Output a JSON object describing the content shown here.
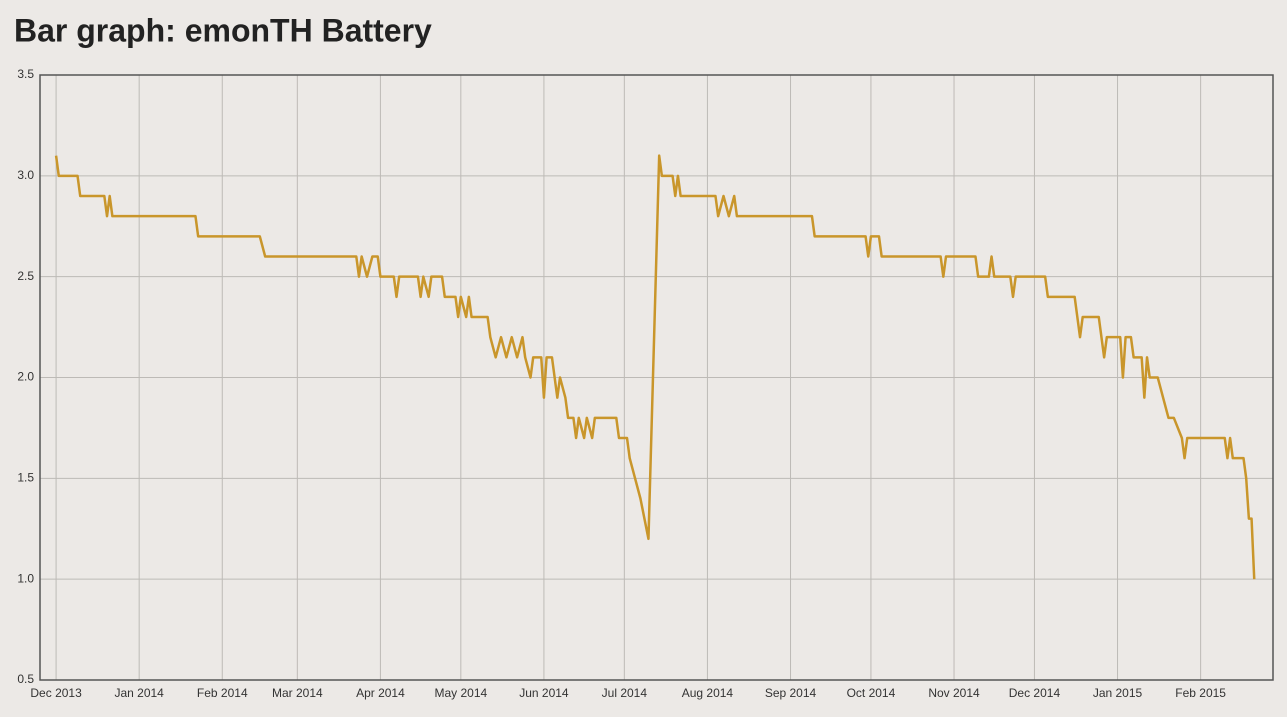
{
  "chart_data": {
    "type": "line",
    "title": "Bar graph: emonTH Battery",
    "color": "#c9962b",
    "grid": true,
    "ylim": [
      0.5,
      3.5
    ],
    "yticks": [
      0.5,
      {
        "value": 1,
        "label": "1.0"
      },
      1.5,
      {
        "value": 2,
        "label": "2.0"
      },
      2.5,
      {
        "value": 3,
        "label": "3.0"
      },
      3.5
    ],
    "xlim": [
      1385337600000,
      1425081600000
    ],
    "xticks": [
      {
        "value": 1385856000000,
        "label": "Dec 2013"
      },
      {
        "value": 1388534400000,
        "label": "Jan 2014"
      },
      {
        "value": 1391212800000,
        "label": "Feb 2014"
      },
      {
        "value": 1393632000000,
        "label": "Mar 2014"
      },
      {
        "value": 1396310400000,
        "label": "Apr 2014"
      },
      {
        "value": 1398902400000,
        "label": "May 2014"
      },
      {
        "value": 1401580800000,
        "label": "Jun 2014"
      },
      {
        "value": 1404172800000,
        "label": "Jul 2014"
      },
      {
        "value": 1406851200000,
        "label": "Aug 2014"
      },
      {
        "value": 1409529600000,
        "label": "Sep 2014"
      },
      {
        "value": 1412121600000,
        "label": "Oct 2014"
      },
      {
        "value": 1414800000000,
        "label": "Nov 2014"
      },
      {
        "value": 1417392000000,
        "label": "Dec 2014"
      },
      {
        "value": 1420070400000,
        "label": "Jan 2015"
      },
      {
        "value": 1422748800000,
        "label": "Feb 2015"
      }
    ],
    "x": [
      1385856000000,
      1385942400000,
      1386547200000,
      1386633600000,
      1387411200000,
      1387497600000,
      1387584000000,
      1387670400000,
      1390348800000,
      1390435200000,
      1392422400000,
      1392595200000,
      1395532800000,
      1395619200000,
      1395705600000,
      1395878400000,
      1396051200000,
      1396224000000,
      1396310400000,
      1396742400000,
      1396828800000,
      1396915200000,
      1397520000000,
      1397606400000,
      1397692800000,
      1397865600000,
      1397952000000,
      1398297600000,
      1398384000000,
      1398729600000,
      1398816000000,
      1398902400000,
      1399075200000,
      1399161600000,
      1399248000000,
      1399766400000,
      1399852800000,
      1400025600000,
      1400198400000,
      1400371200000,
      1400544000000,
      1400716800000,
      1400889600000,
      1400976000000,
      1401148800000,
      1401235200000,
      1401494400000,
      1401580800000,
      1401667200000,
      1401840000000,
      1401926400000,
      1402012800000,
      1402099200000,
      1402272000000,
      1402358400000,
      1402531200000,
      1402617600000,
      1402704000000,
      1402876800000,
      1402963200000,
      1403136000000,
      1403222400000,
      1403913600000,
      1404000000000,
      1404259200000,
      1404345600000,
      1404518400000,
      1404691200000,
      1404950400000,
      1405296000000,
      1405382400000,
      1405728000000,
      1405814400000,
      1405900800000,
      1405987200000,
      1407110400000,
      1407196800000,
      1407369600000,
      1407542400000,
      1407715200000,
      1407801600000,
      1410220800000,
      1410307200000,
      1411948800000,
      1412035200000,
      1412121600000,
      1412380800000,
      1412467200000,
      1414368000000,
      1414454400000,
      1414540800000,
      1415491200000,
      1415577600000,
      1415923200000,
      1416009600000,
      1416096000000,
      1416614400000,
      1416700800000,
      1416787200000,
      1417737600000,
      1417824000000,
      1418688000000,
      1418774400000,
      1418860800000,
      1418947200000,
      1419465600000,
      1419552000000,
      1419638400000,
      1419724800000,
      1420156800000,
      1420243200000,
      1420329600000,
      1420502400000,
      1420588800000,
      1420848000000,
      1420934400000,
      1421020800000,
      1421107200000,
      1421366400000,
      1421539200000,
      1421712000000,
      1421884800000,
      1422144000000,
      1422230400000,
      1422316800000,
      1423526400000,
      1423612800000,
      1423699200000,
      1423785600000,
      1424131200000,
      1424217600000,
      1424304000000,
      1424390400000,
      1424476800000
    ],
    "values": [
      3.1,
      3.0,
      3.0,
      2.9,
      2.9,
      2.8,
      2.9,
      2.8,
      2.8,
      2.7,
      2.7,
      2.6,
      2.6,
      2.5,
      2.6,
      2.5,
      2.6,
      2.6,
      2.5,
      2.5,
      2.4,
      2.5,
      2.5,
      2.4,
      2.5,
      2.4,
      2.5,
      2.5,
      2.4,
      2.4,
      2.3,
      2.4,
      2.3,
      2.4,
      2.3,
      2.3,
      2.2,
      2.1,
      2.2,
      2.1,
      2.2,
      2.1,
      2.2,
      2.1,
      2.0,
      2.1,
      2.1,
      1.9,
      2.1,
      2.1,
      2.0,
      1.9,
      2.0,
      1.9,
      1.8,
      1.8,
      1.7,
      1.8,
      1.7,
      1.8,
      1.7,
      1.8,
      1.8,
      1.7,
      1.7,
      1.6,
      1.5,
      1.4,
      1.2,
      3.1,
      3.0,
      3.0,
      2.9,
      3.0,
      2.9,
      2.9,
      2.8,
      2.9,
      2.8,
      2.9,
      2.8,
      2.8,
      2.7,
      2.7,
      2.6,
      2.7,
      2.7,
      2.6,
      2.6,
      2.5,
      2.6,
      2.6,
      2.5,
      2.5,
      2.6,
      2.5,
      2.5,
      2.4,
      2.5,
      2.5,
      2.4,
      2.4,
      2.3,
      2.2,
      2.3,
      2.3,
      2.2,
      2.1,
      2.2,
      2.2,
      2.0,
      2.2,
      2.2,
      2.1,
      2.1,
      1.9,
      2.1,
      2.0,
      2.0,
      1.9,
      1.8,
      1.8,
      1.7,
      1.6,
      1.7,
      1.7,
      1.6,
      1.7,
      1.6,
      1.6,
      1.5,
      1.3,
      1.3,
      1.0
    ]
  }
}
